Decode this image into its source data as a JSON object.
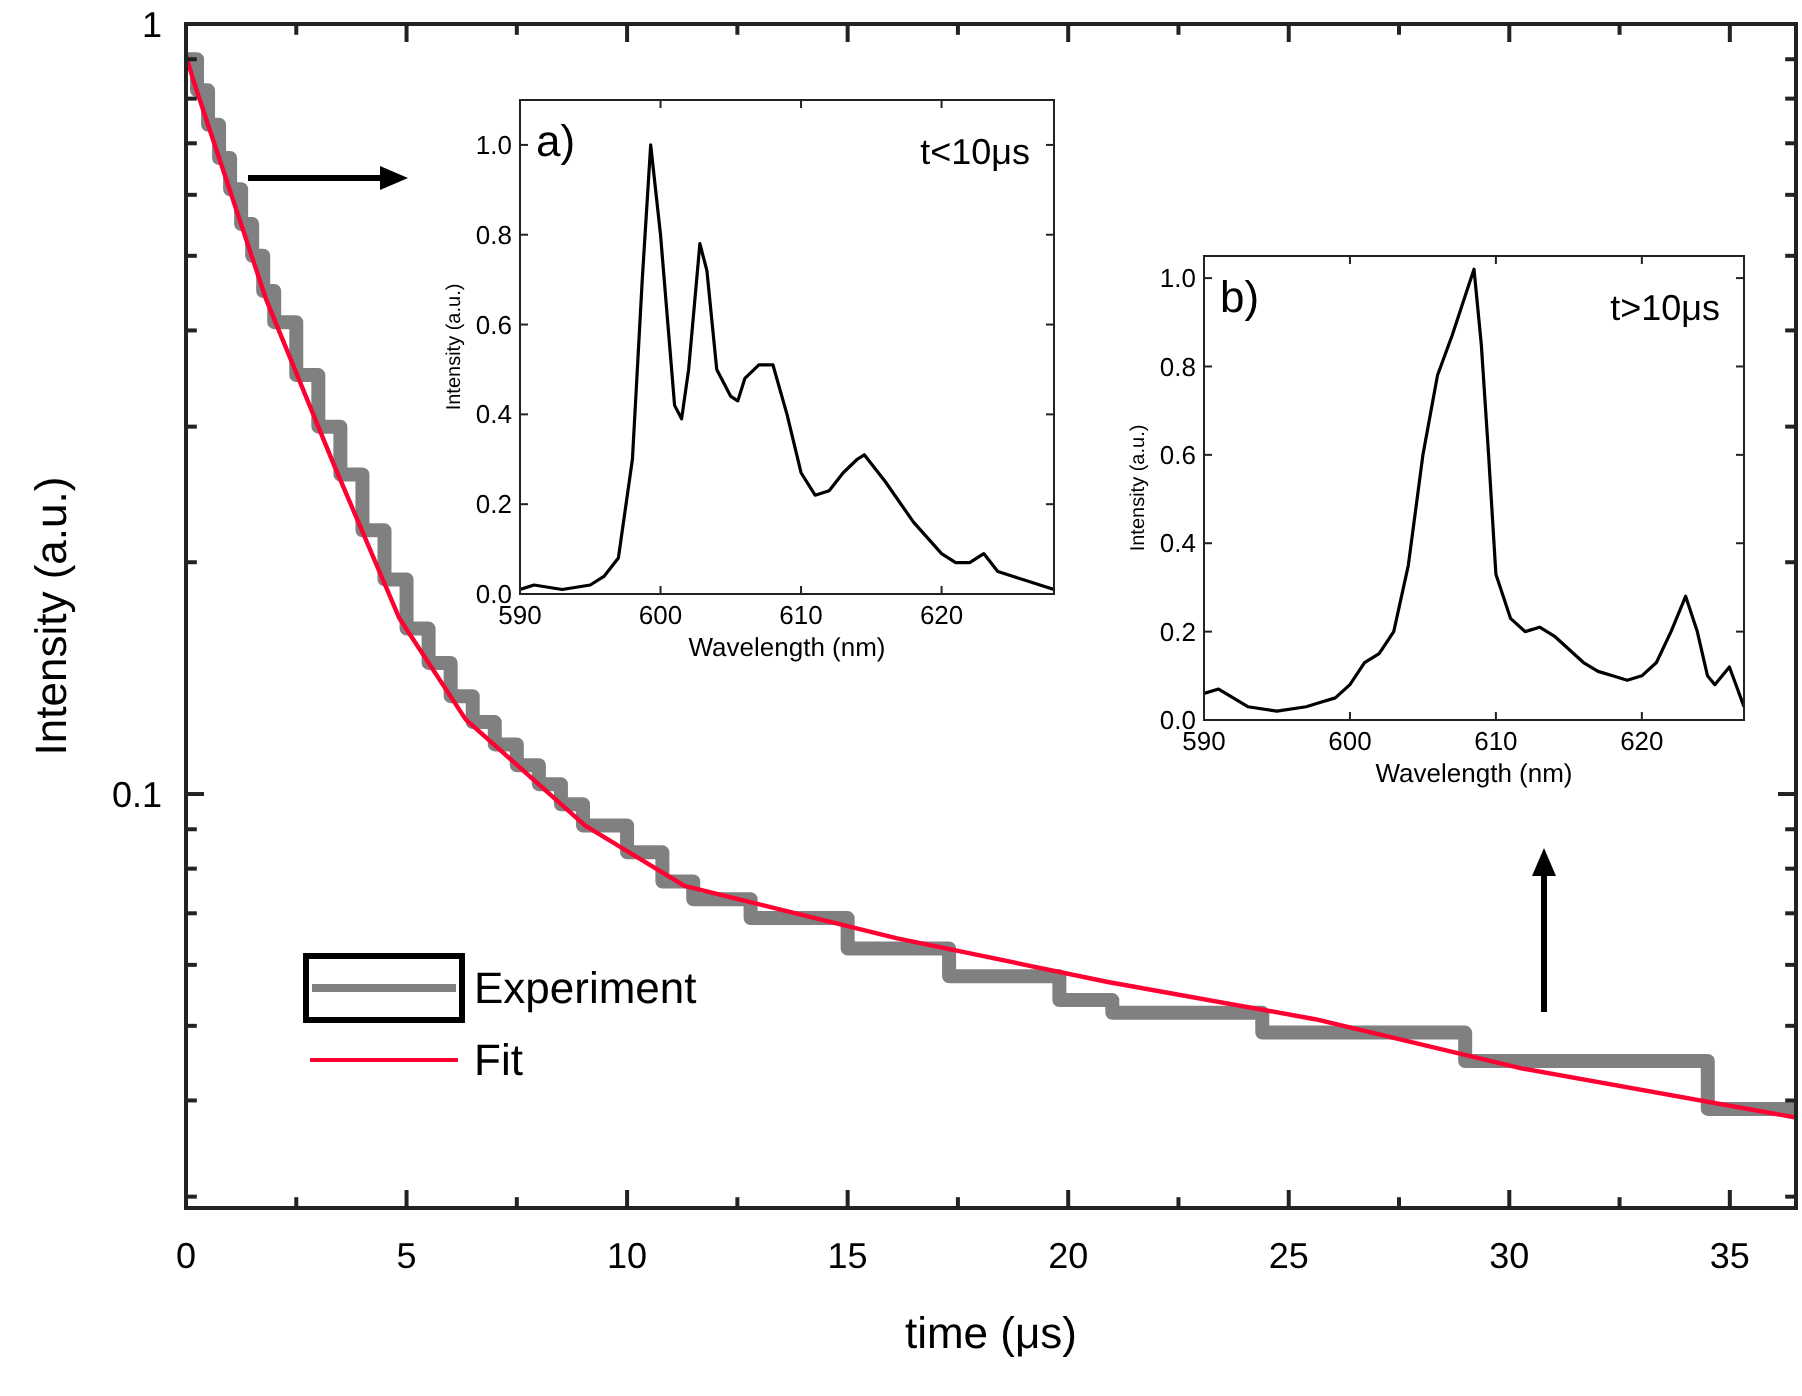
{
  "chart_data": [
    {
      "type": "line",
      "xlabel": "time (μs)",
      "ylabel": "Intensity (a.u.)",
      "log": "y",
      "xlim": [
        0,
        36.5
      ],
      "ylim": [
        0.029,
        1
      ],
      "xticks": [
        0,
        {
          "value": 2.5,
          "label": null
        },
        5,
        {
          "value": 7.5,
          "label": null
        },
        10,
        {
          "value": 12.5,
          "label": null
        },
        15,
        {
          "value": 17.5,
          "label": null
        },
        20,
        {
          "value": 22.5,
          "label": null
        },
        25,
        {
          "value": 27.5,
          "label": null
        },
        30,
        {
          "value": 32.5,
          "label": null
        },
        35
      ],
      "yticks": [
        1,
        {
          "value": 0.9,
          "label": null
        },
        {
          "value": 0.8,
          "label": null
        },
        {
          "value": 0.7,
          "label": null
        },
        {
          "value": 0.6,
          "label": null
        },
        {
          "value": 0.5,
          "label": null
        },
        {
          "value": 0.4,
          "label": null
        },
        {
          "value": 0.3,
          "label": null
        },
        {
          "value": 0.2,
          "label": null
        },
        0.1,
        {
          "value": 0.09,
          "label": null
        },
        {
          "value": 0.08,
          "label": null
        },
        {
          "value": 0.07,
          "label": null
        },
        {
          "value": 0.06,
          "label": null
        },
        {
          "value": 0.05,
          "label": null
        },
        {
          "value": 0.04,
          "label": null
        },
        {
          "value": 0.03,
          "label": null
        }
      ],
      "grid": false,
      "legend": "bottom left",
      "series": [
        {
          "name": "Experiment",
          "type": "step",
          "color": "#808080",
          "x": [
            0,
            0.25,
            0.5,
            0.75,
            1,
            1.25,
            1.5,
            1.75,
            2,
            2.5,
            3,
            3.5,
            4,
            4.5,
            5,
            5.5,
            6,
            6.5,
            7,
            7.5,
            8,
            8.5,
            9,
            10,
            10.8,
            11.5,
            12.8,
            15,
            17.3,
            19.8,
            21,
            24.4,
            29,
            34.5,
            36.5
          ],
          "values": [
            0.9,
            0.82,
            0.74,
            0.67,
            0.61,
            0.55,
            0.5,
            0.45,
            0.41,
            0.35,
            0.3,
            0.26,
            0.22,
            0.19,
            0.164,
            0.148,
            0.134,
            0.124,
            0.116,
            0.109,
            0.103,
            0.097,
            0.091,
            0.084,
            0.077,
            0.073,
            0.069,
            0.063,
            0.058,
            0.054,
            0.052,
            0.049,
            0.045,
            0.039,
            0.039
          ]
        },
        {
          "name": "Fit",
          "type": "line",
          "color": "#ff0033",
          "x": [
            0,
            0.18,
            1.81,
            3.35,
            4.84,
            6.34,
            9.05,
            11.3,
            16.1,
            20.9,
            25.6,
            30.3,
            36.5
          ],
          "values": [
            0.91,
            0.84,
            0.44,
            0.268,
            0.169,
            0.125,
            0.091,
            0.076,
            0.065,
            0.057,
            0.051,
            0.044,
            0.038
          ]
        }
      ]
    },
    {
      "type": "line",
      "xlabel": "Wavelength (nm)",
      "ylabel": "Intensity (a.u.)",
      "xlim": [
        590,
        628
      ],
      "ylim": [
        0,
        1.1
      ],
      "xticks": [
        590,
        600,
        610,
        620
      ],
      "yticks": [
        {
          "value": 0,
          "label": "0.0"
        },
        {
          "value": 0.2,
          "label": "0.2"
        },
        {
          "value": 0.4,
          "label": "0.4"
        },
        {
          "value": 0.6,
          "label": "0.6"
        },
        {
          "value": 0.8,
          "label": "0.8"
        },
        {
          "value": 1,
          "label": "1.0"
        }
      ],
      "annotations": [
        "a)",
        "t<10μs"
      ],
      "series": [
        {
          "color": "#000000",
          "x": [
            590,
            591,
            593,
            595,
            596,
            597,
            598,
            598.7,
            599.3,
            600,
            601,
            601.5,
            602,
            602.8,
            603.3,
            604,
            605,
            605.5,
            606,
            607,
            608,
            609,
            610,
            611,
            612,
            613,
            614,
            614.5,
            616,
            618,
            620,
            621,
            622,
            623,
            624,
            625,
            626,
            627,
            628
          ],
          "values": [
            0.01,
            0.02,
            0.01,
            0.02,
            0.04,
            0.08,
            0.3,
            0.7,
            1.0,
            0.8,
            0.42,
            0.39,
            0.5,
            0.78,
            0.72,
            0.5,
            0.44,
            0.43,
            0.48,
            0.51,
            0.51,
            0.4,
            0.27,
            0.22,
            0.23,
            0.27,
            0.3,
            0.31,
            0.25,
            0.16,
            0.09,
            0.07,
            0.07,
            0.09,
            0.05,
            0.04,
            0.03,
            0.02,
            0.01
          ]
        }
      ]
    },
    {
      "type": "line",
      "xlabel": "Wavelength (nm)",
      "ylabel": "Intensity (a.u.)",
      "xlim": [
        590,
        627
      ],
      "ylim": [
        0,
        1.05
      ],
      "xticks": [
        590,
        600,
        610,
        620
      ],
      "yticks": [
        {
          "value": 0,
          "label": "0.0"
        },
        {
          "value": 0.2,
          "label": "0.2"
        },
        {
          "value": 0.4,
          "label": "0.4"
        },
        {
          "value": 0.6,
          "label": "0.6"
        },
        {
          "value": 0.8,
          "label": "0.8"
        },
        {
          "value": 1,
          "label": "1.0"
        }
      ],
      "annotations": [
        "b)",
        "t>10μs"
      ],
      "series": [
        {
          "color": "#000000",
          "x": [
            590,
            591,
            592,
            593,
            595,
            597,
            598,
            599,
            600,
            601,
            602,
            603,
            604,
            605,
            606,
            607,
            608,
            608.5,
            609,
            609.5,
            610,
            611,
            612,
            613,
            614,
            615,
            616,
            617,
            618,
            619,
            620,
            621,
            622,
            623,
            623.8,
            624.5,
            625,
            626,
            627
          ],
          "values": [
            0.06,
            0.07,
            0.05,
            0.03,
            0.02,
            0.03,
            0.04,
            0.05,
            0.08,
            0.13,
            0.15,
            0.2,
            0.35,
            0.6,
            0.78,
            0.87,
            0.97,
            1.02,
            0.85,
            0.6,
            0.33,
            0.23,
            0.2,
            0.21,
            0.19,
            0.16,
            0.13,
            0.11,
            0.1,
            0.09,
            0.1,
            0.13,
            0.2,
            0.28,
            0.2,
            0.1,
            0.08,
            0.12,
            0.03
          ]
        }
      ]
    }
  ]
}
